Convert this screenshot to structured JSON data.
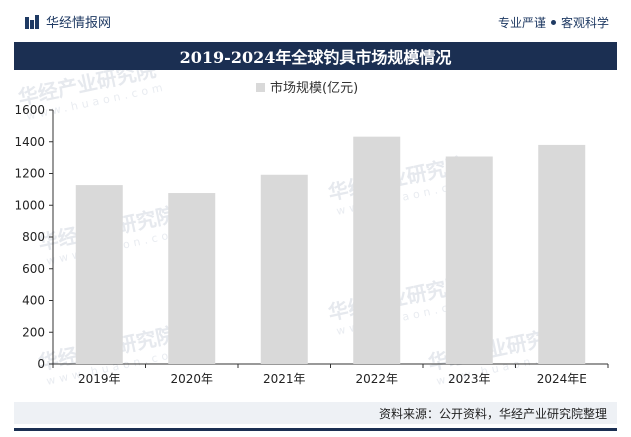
{
  "brand": {
    "name": "华经情报网",
    "icon": "bar-chart-icon"
  },
  "slogan": {
    "left": "专业严谨",
    "right": "客观科学"
  },
  "title": "2019-2024年全球钓具市场规模情况",
  "source": "资料来源：公开资料，华经产业研究院整理",
  "watermark": {
    "cn": "华经产业研究院",
    "url": "www.huaon.com"
  },
  "colors": {
    "bar": "#d9d9d9",
    "title_bg": "#1b2f52",
    "brand": "#1f3a63",
    "source_bg": "#eef1f5"
  },
  "chart_data": {
    "type": "bar",
    "title": "2019-2024年全球钓具市场规模情况",
    "categories": [
      "2019年",
      "2020年",
      "2021年",
      "2022年",
      "2023年",
      "2024年E"
    ],
    "series": [
      {
        "name": "市场规模(亿元)",
        "values": [
          1127,
          1077,
          1192,
          1432,
          1307,
          1380
        ]
      }
    ],
    "ylim": [
      0,
      1600
    ],
    "yticks": [
      0,
      200,
      400,
      600,
      800,
      1000,
      1200,
      1400,
      1600
    ],
    "xlabel": "",
    "ylabel": "",
    "legend": "top-center",
    "grid": false
  }
}
